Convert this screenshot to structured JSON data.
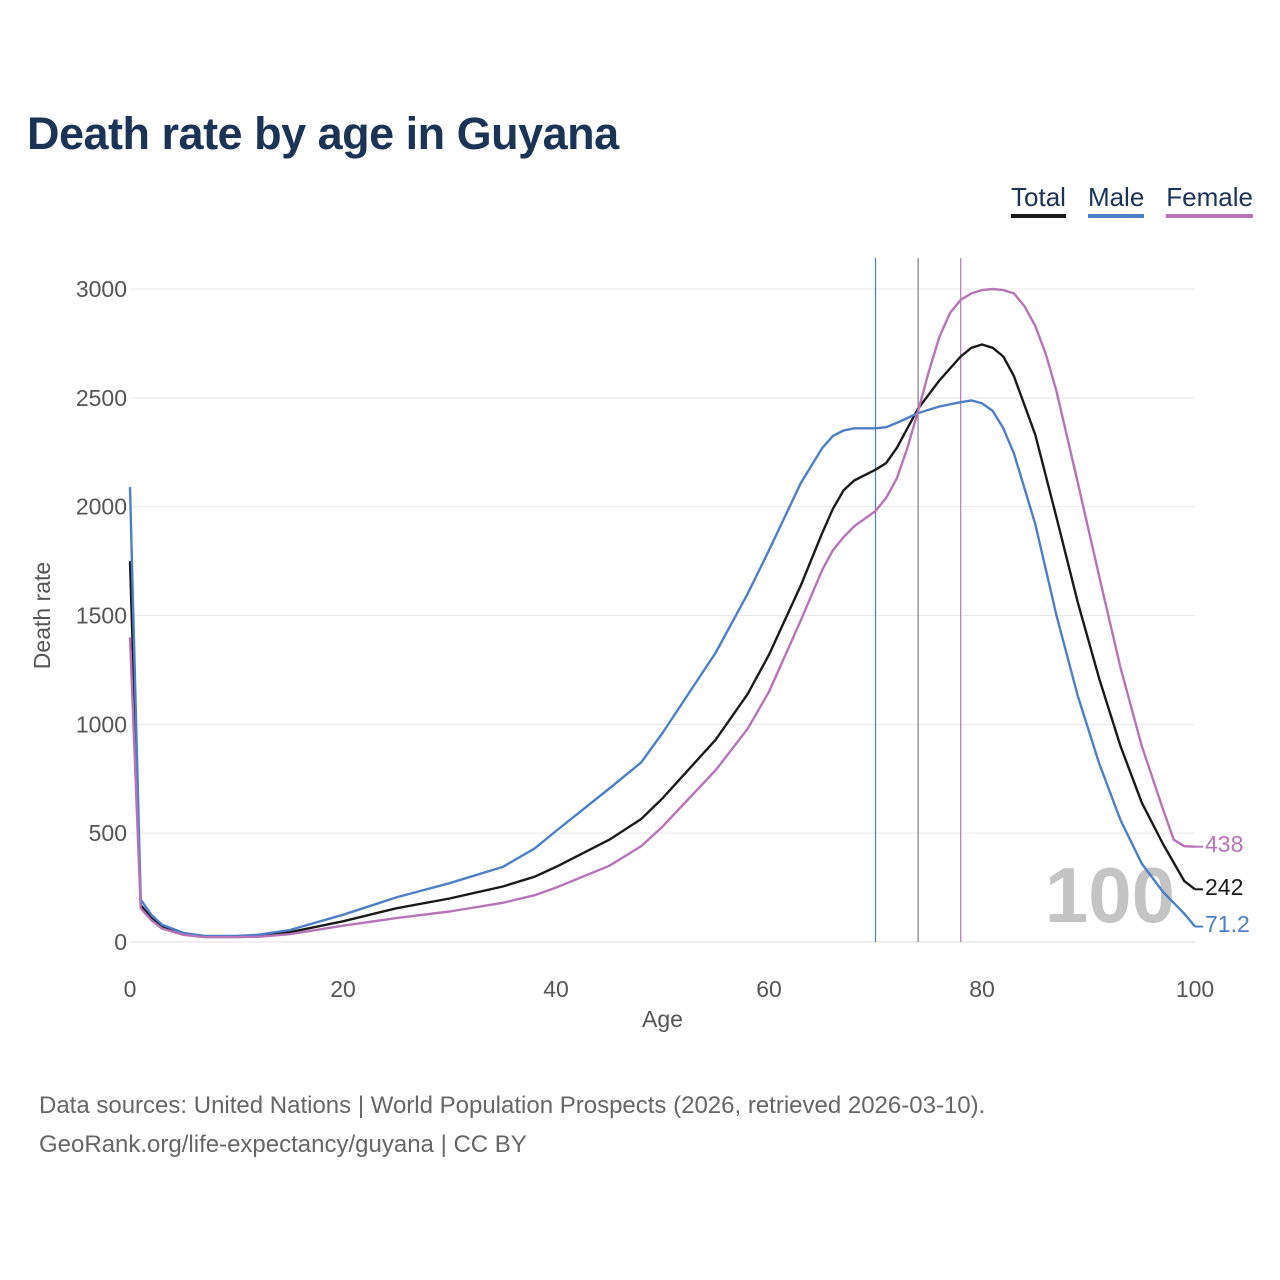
{
  "title": "Death rate by age in Guyana",
  "legend": [
    {
      "key": "total",
      "label": "Total",
      "color": "#1a1a1a"
    },
    {
      "key": "male",
      "label": "Male",
      "color": "#4d7fc6"
    },
    {
      "key": "female",
      "label": "Female",
      "color": "#b774b8"
    }
  ],
  "watermark": "100",
  "footer": {
    "line1": "Data sources: United Nations | World Population Prospects (2026, retrieved 2026-03-10).",
    "line2": "GeoRank.org/life-expectancy/guyana | CC BY"
  },
  "chart_data": {
    "type": "line",
    "title": "Death rate by age in Guyana",
    "xlabel": "Age",
    "ylabel": "Death rate",
    "xlim": [
      0,
      100
    ],
    "ylim": [
      0,
      3000
    ],
    "xticks": [
      0,
      20,
      40,
      60,
      80,
      100
    ],
    "yticks": [
      0,
      500,
      1000,
      1500,
      2000,
      2500,
      3000
    ],
    "grid": true,
    "legend_position": "top-right",
    "reference_lines": [
      {
        "series": "male",
        "x": 70,
        "color": "#4d7fc6"
      },
      {
        "series": "total",
        "x": 74,
        "color": "#7f7f7f"
      },
      {
        "series": "female",
        "x": 78,
        "color": "#b774b8"
      }
    ],
    "series": [
      {
        "key": "total",
        "name": "Total",
        "color": "#1a1a1a",
        "end_label": "242",
        "points": [
          [
            0,
            1750
          ],
          [
            1,
            170
          ],
          [
            2,
            110
          ],
          [
            3,
            70
          ],
          [
            5,
            38
          ],
          [
            7,
            25
          ],
          [
            10,
            25
          ],
          [
            12,
            28
          ],
          [
            15,
            45
          ],
          [
            20,
            95
          ],
          [
            25,
            155
          ],
          [
            30,
            200
          ],
          [
            35,
            255
          ],
          [
            38,
            300
          ],
          [
            40,
            345
          ],
          [
            45,
            470
          ],
          [
            48,
            565
          ],
          [
            50,
            660
          ],
          [
            55,
            930
          ],
          [
            58,
            1140
          ],
          [
            60,
            1320
          ],
          [
            63,
            1640
          ],
          [
            65,
            1880
          ],
          [
            66,
            1990
          ],
          [
            67,
            2075
          ],
          [
            68,
            2120
          ],
          [
            70,
            2170
          ],
          [
            71,
            2200
          ],
          [
            72,
            2270
          ],
          [
            73,
            2360
          ],
          [
            74,
            2450
          ],
          [
            76,
            2580
          ],
          [
            78,
            2690
          ],
          [
            79,
            2730
          ],
          [
            80,
            2745
          ],
          [
            81,
            2730
          ],
          [
            82,
            2690
          ],
          [
            83,
            2600
          ],
          [
            85,
            2330
          ],
          [
            87,
            1950
          ],
          [
            89,
            1560
          ],
          [
            91,
            1210
          ],
          [
            93,
            900
          ],
          [
            95,
            640
          ],
          [
            97,
            450
          ],
          [
            98,
            365
          ],
          [
            99,
            280
          ],
          [
            100,
            242
          ]
        ]
      },
      {
        "key": "male",
        "name": "Male",
        "color": "#4d7fc6",
        "end_label": "71.2",
        "points": [
          [
            0,
            2090
          ],
          [
            1,
            195
          ],
          [
            2,
            125
          ],
          [
            3,
            80
          ],
          [
            5,
            42
          ],
          [
            7,
            28
          ],
          [
            10,
            28
          ],
          [
            12,
            33
          ],
          [
            15,
            55
          ],
          [
            20,
            125
          ],
          [
            25,
            205
          ],
          [
            30,
            270
          ],
          [
            35,
            345
          ],
          [
            38,
            430
          ],
          [
            40,
            510
          ],
          [
            45,
            705
          ],
          [
            48,
            825
          ],
          [
            50,
            960
          ],
          [
            55,
            1330
          ],
          [
            58,
            1600
          ],
          [
            60,
            1800
          ],
          [
            63,
            2110
          ],
          [
            65,
            2270
          ],
          [
            66,
            2325
          ],
          [
            67,
            2350
          ],
          [
            68,
            2360
          ],
          [
            70,
            2360
          ],
          [
            71,
            2365
          ],
          [
            72,
            2385
          ],
          [
            74,
            2430
          ],
          [
            76,
            2460
          ],
          [
            78,
            2480
          ],
          [
            79,
            2488
          ],
          [
            80,
            2475
          ],
          [
            81,
            2440
          ],
          [
            82,
            2360
          ],
          [
            83,
            2245
          ],
          [
            85,
            1920
          ],
          [
            87,
            1500
          ],
          [
            89,
            1130
          ],
          [
            91,
            820
          ],
          [
            93,
            560
          ],
          [
            95,
            360
          ],
          [
            97,
            230
          ],
          [
            98,
            180
          ],
          [
            99,
            130
          ],
          [
            100,
            71
          ]
        ]
      },
      {
        "key": "female",
        "name": "Female",
        "color": "#b774b8",
        "end_label": "438",
        "points": [
          [
            0,
            1400
          ],
          [
            1,
            155
          ],
          [
            2,
            100
          ],
          [
            3,
            62
          ],
          [
            5,
            33
          ],
          [
            7,
            22
          ],
          [
            10,
            22
          ],
          [
            12,
            24
          ],
          [
            15,
            36
          ],
          [
            20,
            75
          ],
          [
            25,
            110
          ],
          [
            30,
            140
          ],
          [
            35,
            180
          ],
          [
            38,
            215
          ],
          [
            40,
            250
          ],
          [
            45,
            350
          ],
          [
            48,
            440
          ],
          [
            50,
            530
          ],
          [
            55,
            790
          ],
          [
            58,
            980
          ],
          [
            60,
            1150
          ],
          [
            63,
            1480
          ],
          [
            65,
            1710
          ],
          [
            66,
            1800
          ],
          [
            67,
            1860
          ],
          [
            68,
            1910
          ],
          [
            70,
            1980
          ],
          [
            71,
            2040
          ],
          [
            72,
            2130
          ],
          [
            73,
            2270
          ],
          [
            74,
            2440
          ],
          [
            75,
            2620
          ],
          [
            76,
            2780
          ],
          [
            77,
            2890
          ],
          [
            78,
            2950
          ],
          [
            79,
            2980
          ],
          [
            80,
            2995
          ],
          [
            81,
            3000
          ],
          [
            82,
            2995
          ],
          [
            83,
            2980
          ],
          [
            84,
            2920
          ],
          [
            85,
            2830
          ],
          [
            86,
            2700
          ],
          [
            87,
            2530
          ],
          [
            89,
            2110
          ],
          [
            91,
            1680
          ],
          [
            93,
            1260
          ],
          [
            95,
            900
          ],
          [
            97,
            610
          ],
          [
            98,
            470
          ],
          [
            99,
            440
          ],
          [
            100,
            438
          ]
        ]
      }
    ]
  }
}
